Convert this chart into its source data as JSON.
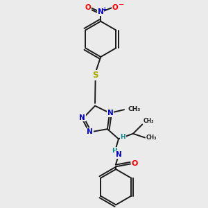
{
  "bg_color": "#ebebeb",
  "atom_colors": {
    "C": "#000000",
    "N": "#0000cc",
    "O": "#ff0000",
    "S": "#aaaa00",
    "H": "#008888"
  },
  "bond_color": "#1a1a1a",
  "bond_width": 1.4,
  "fig_width": 3.0,
  "fig_height": 3.0,
  "dpi": 100,
  "xlim": [
    -1.1,
    1.3
  ],
  "ylim": [
    -1.55,
    1.55
  ]
}
